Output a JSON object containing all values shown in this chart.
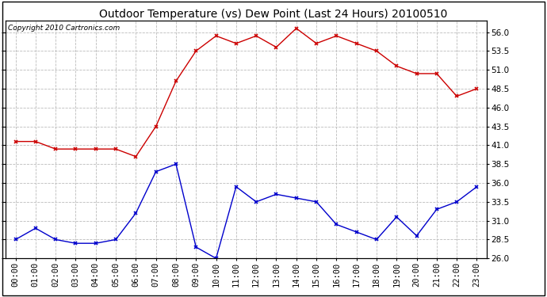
{
  "title": "Outdoor Temperature (vs) Dew Point (Last 24 Hours) 20100510",
  "copyright_text": "Copyright 2010 Cartronics.com",
  "x_labels": [
    "00:00",
    "01:00",
    "02:00",
    "03:00",
    "04:00",
    "05:00",
    "06:00",
    "07:00",
    "08:00",
    "09:00",
    "10:00",
    "11:00",
    "12:00",
    "13:00",
    "14:00",
    "15:00",
    "16:00",
    "17:00",
    "18:00",
    "19:00",
    "20:00",
    "21:00",
    "22:00",
    "23:00"
  ],
  "temp_data": [
    41.5,
    41.5,
    40.5,
    40.5,
    40.5,
    40.5,
    39.5,
    43.5,
    49.5,
    53.5,
    55.5,
    54.5,
    55.5,
    54.0,
    56.5,
    54.5,
    55.5,
    54.5,
    53.5,
    51.5,
    50.5,
    50.5,
    47.5,
    48.5
  ],
  "dew_data": [
    28.5,
    30.0,
    28.5,
    28.0,
    28.0,
    28.5,
    32.0,
    37.5,
    38.5,
    27.5,
    26.0,
    35.5,
    33.5,
    34.5,
    34.0,
    33.5,
    30.5,
    29.5,
    28.5,
    31.5,
    29.0,
    32.5,
    33.5,
    35.5
  ],
  "yticks": [
    26.0,
    28.5,
    31.0,
    33.5,
    36.0,
    38.5,
    41.0,
    43.5,
    46.0,
    48.5,
    51.0,
    53.5,
    56.0
  ],
  "ylim": [
    26.0,
    57.5
  ],
  "temp_color": "#CC0000",
  "dew_color": "#0000CC",
  "bg_color": "#FFFFFF",
  "grid_color": "#BBBBBB",
  "title_fontsize": 10,
  "copyright_fontsize": 6.5,
  "tick_fontsize": 7.5
}
